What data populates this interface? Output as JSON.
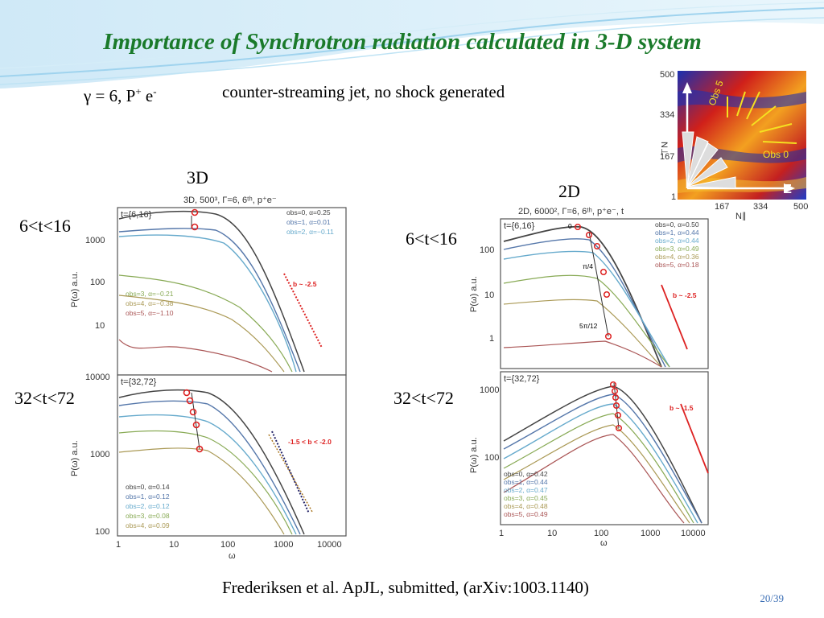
{
  "slide": {
    "title": "Importance of Synchrotron radiation calculated in 3-D system",
    "params": {
      "gamma": "γ = 6, P",
      "p_sup": "+",
      "e": " e",
      "e_sup": "-"
    },
    "subtitle": "counter-streaming jet, no shock generated",
    "citation": "Frederiksen et al. ApJL, submitted, (arXiv:1003.1140)",
    "page": "20/39"
  },
  "labels": {
    "label_3d": "3D",
    "label_2d": "2D",
    "t1_left": "6<t<16",
    "t2_left": "32<t<72",
    "t1_right": "6<t<16",
    "t2_right": "32<t<72"
  },
  "panel3d": {
    "header": "3D, 500³, Γ=6, 6ᵗʰ, p⁺e⁻",
    "top": {
      "time": "t={6,16}",
      "legend_a": [
        "obs=0, α=0.25",
        "obs=1, α=0.01",
        "obs=2, α=−0.11"
      ],
      "legend_b": [
        "obs=3, α=−0.21",
        "obs=4, α=−0.38",
        "obs=5, α=−1.10"
      ],
      "slope": "b ~ -2.5",
      "yticks": [
        "1000",
        "100",
        "10"
      ]
    },
    "bottom": {
      "time": "t={32,72}",
      "legend": [
        "obs=0, α=0.14",
        "obs=1, α=0.12",
        "obs=2, α=0.12",
        "obs=3, α=0.08",
        "obs=4, α=0.09"
      ],
      "slope": "-1.5 < b < -2.0",
      "yticks": [
        "10000",
        "1000",
        "100"
      ]
    },
    "xticks": [
      "1",
      "10",
      "100",
      "1000",
      "10000"
    ],
    "ylabel": "P(ω) a.u.",
    "xlabel": "ω"
  },
  "panel2d": {
    "header": "2D, 6000², Γ=6, 6ᵗʰ, p⁺e⁻, t",
    "top": {
      "time": "t={6,16}",
      "legend": [
        "obs=0, α=0.50",
        "obs=1, α=0.44",
        "obs=2, α=0.44",
        "obs=3, α=0.49",
        "obs=4, α=0.36",
        "obs=5, α=0.18"
      ],
      "angle_labels": [
        "0",
        "π/4",
        "5π/12"
      ],
      "slope": "b ~ -2.5",
      "yticks": [
        "100",
        "10",
        "1"
      ]
    },
    "bottom": {
      "time": "t={32,72}",
      "legend": [
        "obs=0, α=0.42",
        "obs=1, α=0.44",
        "obs=2, α=0.47",
        "obs=3, α=0.45",
        "obs=4, α=0.48",
        "obs=5, α=0.49"
      ],
      "slope": "b ~ -1.5",
      "yticks": [
        "1000",
        "100"
      ]
    },
    "xticks": [
      "1",
      "10",
      "100",
      "1000",
      "10000"
    ],
    "ylabel": "P(ω) a.u.",
    "xlabel": "ω"
  },
  "inset": {
    "yticks": [
      "500",
      "334",
      "167",
      "1"
    ],
    "xticks": [
      "167",
      "334",
      "500"
    ],
    "ylabel": "N⊥",
    "xlabel": "N∥",
    "obs5": "Obs 5",
    "obs0": "Obs 0",
    "axis_z": "Z"
  },
  "colors": {
    "title": "#1a7a2a",
    "obs0": "#444444",
    "obs1": "#5577aa",
    "obs2": "#66aacc",
    "obs3": "#88aa55",
    "obs4": "#aa9955",
    "obs5": "#aa5555",
    "marker": "#dd2222",
    "slope": "#dd2222"
  }
}
